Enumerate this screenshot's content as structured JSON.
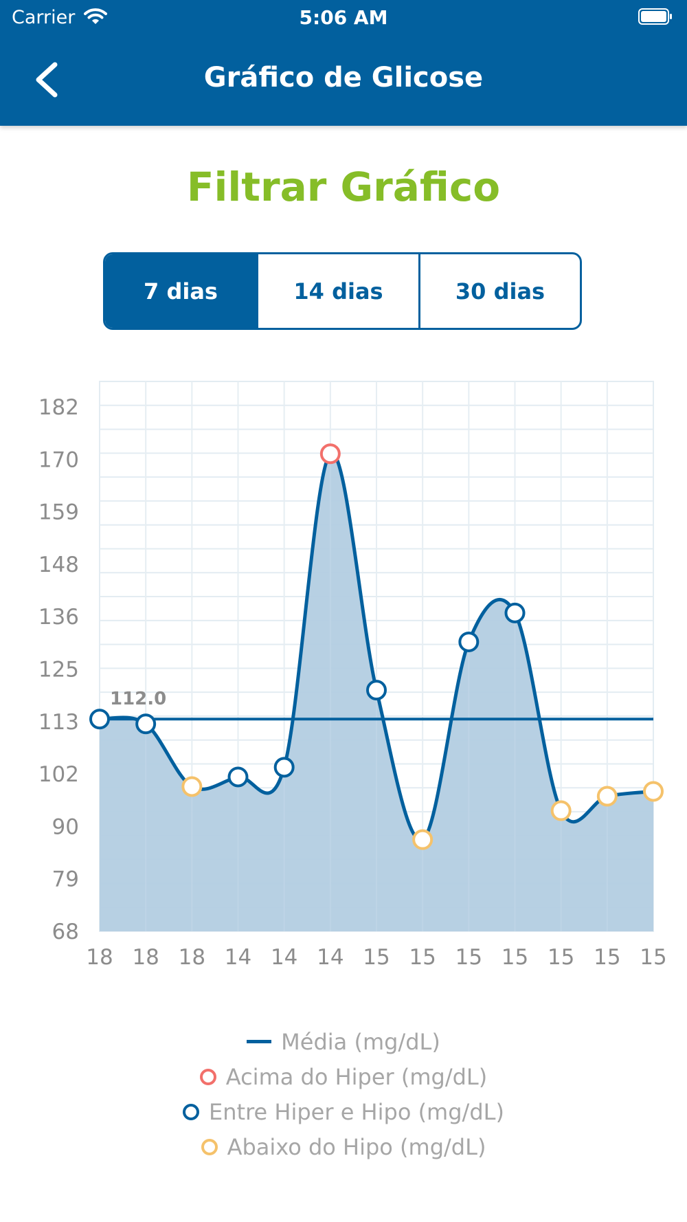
{
  "status_bar": {
    "carrier": "Carrier",
    "time": "5:06 AM"
  },
  "header": {
    "title": "Gráfico de Glicose"
  },
  "filter": {
    "title": "Filtrar Gráfico",
    "options": [
      "7 dias",
      "14 dias",
      "30 dias"
    ],
    "selected": "7 dias"
  },
  "colors": {
    "primary": "#02609e",
    "accent_green": "#86bd28",
    "above_hyper": "#f2706b",
    "between": "#02609e",
    "below_hypo": "#f5c26b",
    "area_fill": "#b3cde2"
  },
  "chart_data": {
    "type": "area",
    "x": [
      "18",
      "18",
      "18",
      "14",
      "14",
      "14",
      "15",
      "15",
      "15",
      "15",
      "15",
      "15",
      "15"
    ],
    "series": [
      {
        "name": "Entre Hiper e Hipo (mg/dL)",
        "values": [
          112,
          111,
          98,
          100,
          102,
          167,
          118,
          87,
          128,
          134,
          93,
          96,
          97
        ],
        "status": [
          "between",
          "between",
          "below",
          "between",
          "between",
          "above",
          "between",
          "below",
          "between",
          "between",
          "below",
          "below",
          "below"
        ]
      }
    ],
    "average": {
      "name": "Média (mg/dL)",
      "value": 112.0,
      "label": "112.0"
    },
    "y_ticks": [
      "182",
      "170",
      "159",
      "148",
      "136",
      "125",
      "113",
      "102",
      "90",
      "79",
      "68"
    ],
    "ylim": [
      68,
      182
    ],
    "grid": true,
    "legend_position": "bottom",
    "legend": [
      {
        "label": "Média (mg/dL)",
        "marker": "line",
        "color": "#02609e"
      },
      {
        "label": "Acima do Hiper (mg/dL)",
        "marker": "circle",
        "color": "#f2706b"
      },
      {
        "label": "Entre Hiper e Hipo (mg/dL)",
        "marker": "circle",
        "color": "#02609e"
      },
      {
        "label": "Abaixo do Hipo (mg/dL)",
        "marker": "circle",
        "color": "#f5c26b"
      }
    ]
  }
}
